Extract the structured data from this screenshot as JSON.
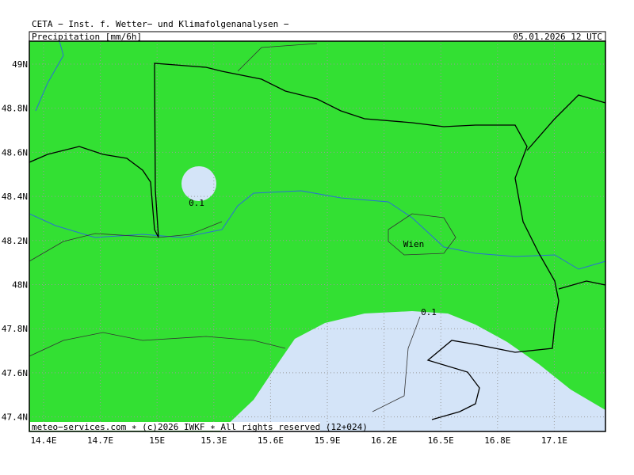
{
  "header": {
    "institute": "CETA − Inst. f. Wetter− und Klimafolgenanalysen −",
    "parameter": "Precipitation_[mm/6h]",
    "valid_time": "05.01.2026 12 UTC"
  },
  "map": {
    "longitude_labels": [
      "14.4E",
      "14.7E",
      "15E",
      "15.3E",
      "15.6E",
      "15.9E",
      "16.2E",
      "16.5E",
      "16.8E",
      "17.1E"
    ],
    "latitude_labels": [
      "49N",
      "48.8N",
      "48.6N",
      "48.4N",
      "48.2N",
      "48N",
      "47.8N",
      "47.6N",
      "47.4N"
    ],
    "contour_labels": [
      "0.1",
      "0.1"
    ],
    "city": "Wien"
  },
  "footer": "meteo−services.com ∗ (c)2026 IWKF ∗ All rights reserved (12+024)"
}
